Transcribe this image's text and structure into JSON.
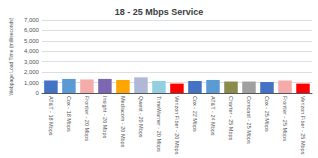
{
  "chart_data": {
    "type": "bar",
    "title": "18 - 25 Mbps Service",
    "ylabel": "Webpage Load Time (milliseconds)",
    "categories": [
      "AT&T - 18 Mbps",
      "Cox - 18 Mbps",
      "Frontier - 20 Mbps",
      "Insight - 20 Mbps",
      "Mediacom - 20 Mbps",
      "Qwest - 20 Mbps",
      "TimeWarner - 20 Mbps",
      "Verizon Fiber - 20 Mbps",
      "Cox - 22 Mbps",
      "AT&T - 24 Mbps",
      "Charter - 25 Mbps",
      "Comcast - 25 Mbps",
      "Cox - 25 Mbps",
      "Frontier - 25 Mbps",
      "Verizon Fiber - 25 Mbps"
    ],
    "values": [
      1200,
      1350,
      1300,
      1350,
      1250,
      1500,
      1150,
      900,
      1150,
      1250,
      1100,
      1100,
      1050,
      1200,
      900
    ],
    "colors": [
      "#4472C4",
      "#5B9BD5",
      "#F4ACAB",
      "#7B68B0",
      "#FFA500",
      "#B0B8D8",
      "#92D0E0",
      "#FF0000",
      "#4472C4",
      "#5B9BD5",
      "#8B8B4B",
      "#A0A0A0",
      "#4472C4",
      "#F4ACAB",
      "#FF0000"
    ],
    "ylim": [
      0,
      7000
    ],
    "yticks": [
      0,
      {
        "value": 1000,
        "label": "1,000"
      },
      {
        "value": 2000,
        "label": "2,000"
      },
      {
        "value": 3000,
        "label": "3,000"
      },
      {
        "value": 4000,
        "label": "4,000"
      },
      {
        "value": 5000,
        "label": "5,000"
      },
      {
        "value": 6000,
        "label": "6,000"
      },
      {
        "value": 7000,
        "label": "7,000"
      }
    ],
    "grid": true
  }
}
